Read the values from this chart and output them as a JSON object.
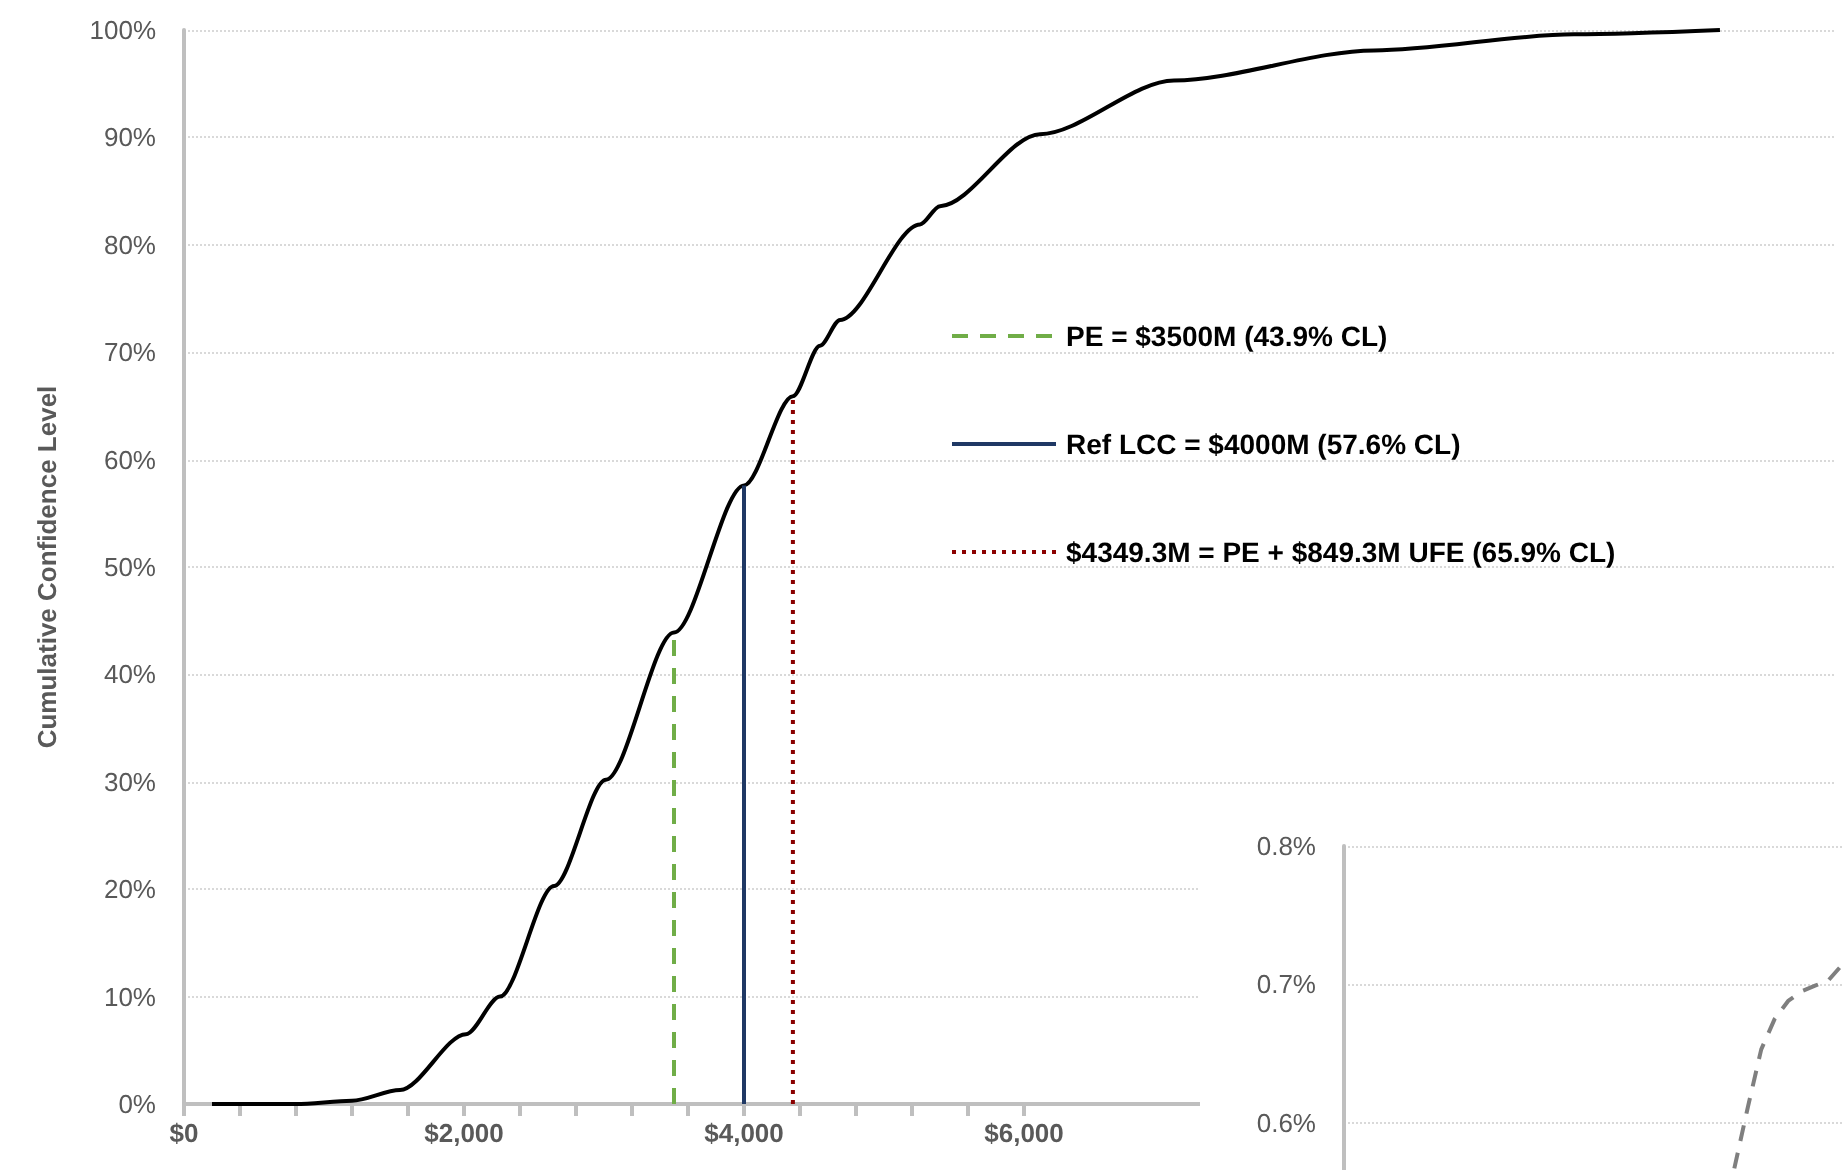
{
  "chart_data": [
    {
      "type": "line",
      "ylabel": "Cumulative Confidence Level",
      "xlim": [
        0,
        11800
      ],
      "ylim": [
        0,
        100
      ],
      "xticks": [
        {
          "value": 0,
          "label": "$0"
        },
        {
          "value": 400,
          "label": null
        },
        {
          "value": 800,
          "label": null
        },
        {
          "value": 1200,
          "label": null
        },
        {
          "value": 1600,
          "label": null
        },
        {
          "value": 2000,
          "label": "$2,000"
        },
        {
          "value": 2400,
          "label": null
        },
        {
          "value": 2800,
          "label": null
        },
        {
          "value": 3200,
          "label": null
        },
        {
          "value": 3600,
          "label": null
        },
        {
          "value": 4000,
          "label": "$4,000"
        },
        {
          "value": 4400,
          "label": null
        },
        {
          "value": 4800,
          "label": null
        },
        {
          "value": 5200,
          "label": null
        },
        {
          "value": 5600,
          "label": null
        },
        {
          "value": 6000,
          "label": "$6,000"
        }
      ],
      "yticks": [
        {
          "value": 0,
          "label": "0%"
        },
        {
          "value": 10,
          "label": "10%"
        },
        {
          "value": 20,
          "label": "20%"
        },
        {
          "value": 30,
          "label": "30%"
        },
        {
          "value": 40,
          "label": "40%"
        },
        {
          "value": 50,
          "label": "50%"
        },
        {
          "value": 60,
          "label": "60%"
        },
        {
          "value": 70,
          "label": "70%"
        },
        {
          "value": 80,
          "label": "80%"
        },
        {
          "value": 90,
          "label": "90%"
        },
        {
          "value": 100,
          "label": "100%"
        }
      ],
      "grid": "y",
      "legend": "right",
      "marker": "none",
      "series": [
        {
          "color": "#000000",
          "line_style": "solid",
          "x": [
            200,
            800,
            1200,
            1543,
            2014,
            2257,
            2643,
            3014,
            3500,
            4000,
            4349,
            4543,
            4686,
            5257,
            5400,
            6114,
            7071,
            8500,
            9929,
            10971
          ],
          "values": [
            0,
            0,
            0.3,
            1.3,
            6.5,
            10,
            20.3,
            30.2,
            43.9,
            57.6,
            65.9,
            70.6,
            73,
            81.9,
            83.6,
            90.3,
            95.3,
            98.1,
            99.6,
            100
          ]
        },
        {
          "name": "PE = $3500M (43.9% CL)",
          "color": "#70ad47",
          "line_style": "dashed",
          "x": [
            3500,
            3500
          ],
          "values": [
            0,
            43.9
          ]
        },
        {
          "name": "Ref LCC = $4000M (57.6% CL)",
          "color": "#1f3864",
          "line_style": "solid",
          "x": [
            4000,
            4000
          ],
          "values": [
            0,
            57.6
          ]
        },
        {
          "name": "$4349.3M = PE + $849.3M UFE (65.9% CL)",
          "color": "#8b0000",
          "line_style": "dotted",
          "x": [
            4349.3,
            4349.3
          ],
          "values": [
            0,
            65.9
          ]
        }
      ]
    },
    {
      "type": "line",
      "categories": [
        null,
        null,
        null,
        null,
        null,
        null,
        null,
        null,
        null,
        null,
        null,
        null,
        null,
        null,
        null,
        null,
        null,
        null,
        null,
        null,
        null,
        null,
        null,
        null,
        null,
        null,
        null,
        null,
        null,
        null,
        null,
        null,
        null,
        null,
        null,
        null,
        null,
        null
      ],
      "ylim": [
        0.56,
        0.8
      ],
      "yticks": [
        {
          "value": 0.6,
          "label": "0.6%"
        },
        {
          "value": 0.7,
          "label": "0.7%"
        },
        {
          "value": 0.8,
          "label": "0.8%"
        }
      ],
      "tick_labels": "y",
      "grid": "y",
      "marker": "none",
      "series": [
        {
          "color": "#7f7f7f",
          "line_style": "dashed",
          "values": [
            null,
            null,
            null,
            null,
            null,
            null,
            null,
            null,
            null,
            null,
            null,
            null,
            null,
            null,
            null,
            null,
            null,
            null,
            null,
            null,
            null,
            null,
            null,
            null,
            null,
            null,
            null,
            null,
            null,
            0.567,
            0.611,
            0.653,
            0.675,
            0.688,
            0.695,
            0.699,
            0.703,
            0.714
          ]
        }
      ]
    }
  ]
}
